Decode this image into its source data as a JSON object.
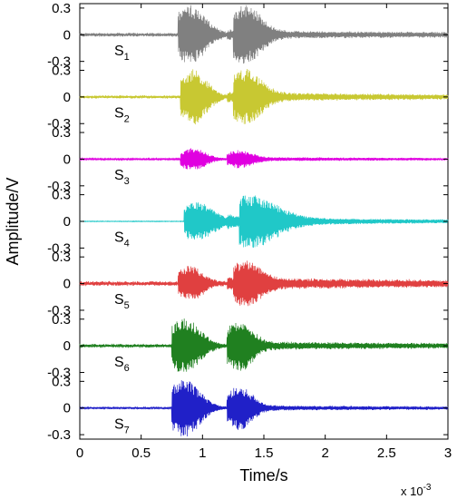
{
  "chart_data": {
    "type": "line",
    "xlabel": "Time/s",
    "ylabel": "Amplitude/V",
    "x_multiplier": {
      "base": "x 10",
      "exponent": "-3"
    },
    "xlim": [
      0,
      3
    ],
    "x_ticks": [
      "0",
      "0.5",
      "1",
      "1.5",
      "2",
      "2.5",
      "3"
    ],
    "x_tick_values": [
      0,
      0.5,
      1,
      1.5,
      2,
      2.5,
      3
    ],
    "ylim": [
      -0.35,
      0.35
    ],
    "y_ticks": [
      "0.3",
      "0",
      "-0.3"
    ],
    "y_tick_values": [
      0.3,
      0,
      -0.3
    ],
    "grid": false,
    "series": [
      {
        "name": "S",
        "sub": "1",
        "color": "#808080",
        "envelope": {
          "noise": 0.025,
          "tail": 0.03,
          "bursts": [
            {
              "t": 0.9,
              "amp": 0.32,
              "width": 0.12
            },
            {
              "t": 1.35,
              "amp": 0.3,
              "width": 0.12
            }
          ]
        }
      },
      {
        "name": "S",
        "sub": "2",
        "color": "#c8c832",
        "envelope": {
          "noise": 0.02,
          "tail": 0.04,
          "bursts": [
            {
              "t": 0.92,
              "amp": 0.3,
              "width": 0.11
            },
            {
              "t": 1.35,
              "amp": 0.27,
              "width": 0.12
            }
          ]
        }
      },
      {
        "name": "S",
        "sub": "3",
        "color": "#e000e0",
        "envelope": {
          "noise": 0.012,
          "tail": 0.015,
          "bursts": [
            {
              "t": 0.92,
              "amp": 0.12,
              "width": 0.1
            },
            {
              "t": 1.3,
              "amp": 0.08,
              "width": 0.1
            }
          ]
        }
      },
      {
        "name": "S",
        "sub": "4",
        "color": "#20c8c8",
        "envelope": {
          "noise": 0.005,
          "tail": 0.05,
          "bursts": [
            {
              "t": 0.95,
              "amp": 0.22,
              "width": 0.14
            },
            {
              "t": 1.4,
              "amp": 0.25,
              "width": 0.2
            }
          ]
        }
      },
      {
        "name": "S",
        "sub": "5",
        "color": "#e04040",
        "envelope": {
          "noise": 0.03,
          "tail": 0.05,
          "bursts": [
            {
              "t": 0.9,
              "amp": 0.18,
              "width": 0.1
            },
            {
              "t": 1.35,
              "amp": 0.2,
              "width": 0.12
            }
          ]
        }
      },
      {
        "name": "S",
        "sub": "6",
        "color": "#208020",
        "envelope": {
          "noise": 0.025,
          "tail": 0.03,
          "bursts": [
            {
              "t": 0.85,
              "amp": 0.3,
              "width": 0.12
            },
            {
              "t": 1.3,
              "amp": 0.25,
              "width": 0.1
            }
          ]
        }
      },
      {
        "name": "S",
        "sub": "7",
        "color": "#2020c8",
        "envelope": {
          "noise": 0.015,
          "tail": 0.02,
          "bursts": [
            {
              "t": 0.85,
              "amp": 0.32,
              "width": 0.12
            },
            {
              "t": 1.3,
              "amp": 0.22,
              "width": 0.1
            }
          ]
        }
      }
    ]
  }
}
